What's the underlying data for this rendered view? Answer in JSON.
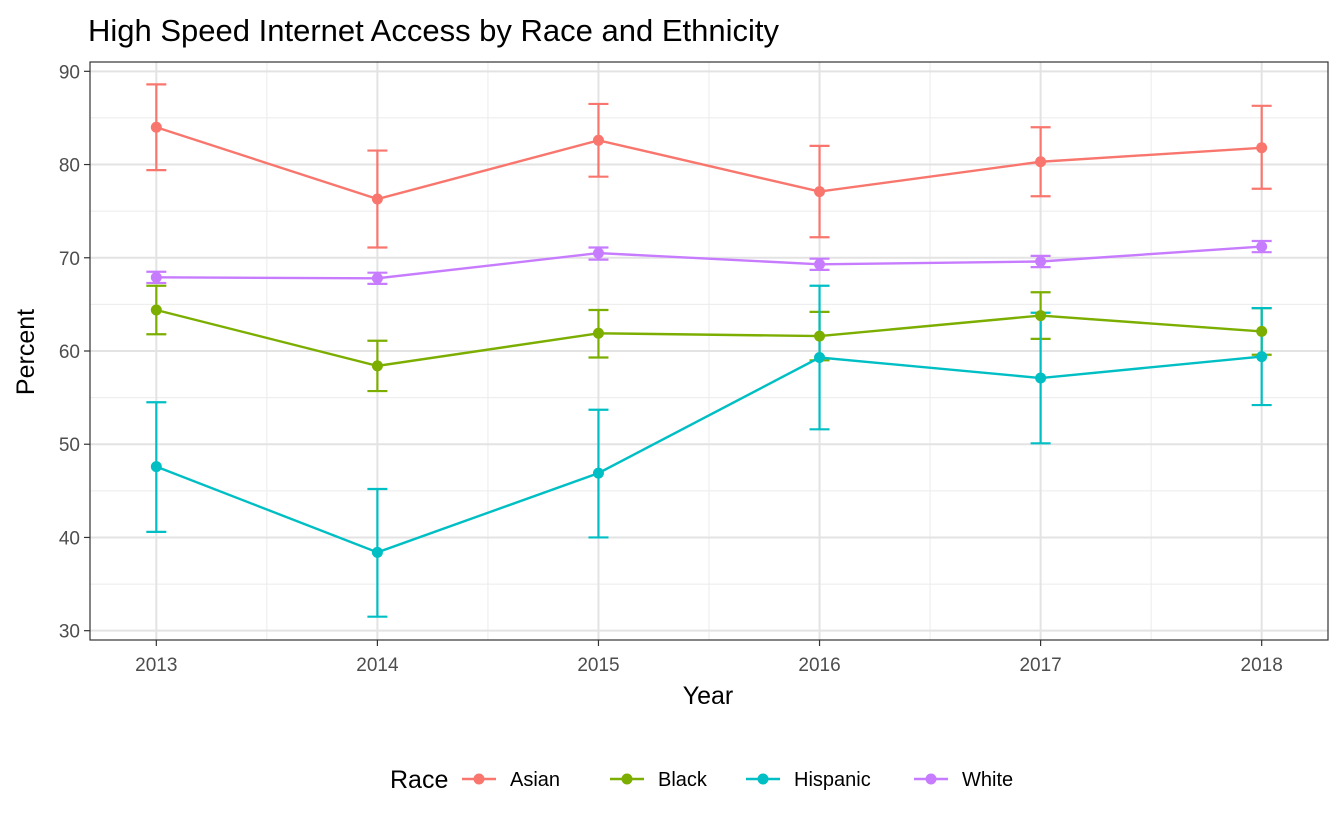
{
  "chart_data": {
    "type": "line",
    "title": "High Speed Internet Access by Race and Ethnicity",
    "xlabel": "Year",
    "ylabel": "Percent",
    "x": [
      2013,
      2014,
      2015,
      2016,
      2017,
      2018
    ],
    "xlim": [
      2012.7,
      2018.3
    ],
    "ylim": [
      29,
      91
    ],
    "yticks": [
      30,
      40,
      50,
      60,
      70,
      80,
      90
    ],
    "grid": true,
    "error_bars": true,
    "legend": {
      "title": "Race",
      "position": "bottom"
    },
    "series": [
      {
        "name": "Asian",
        "color": "#F8766D",
        "values": [
          84.0,
          76.3,
          82.6,
          77.1,
          80.3,
          81.8
        ],
        "lower": [
          79.4,
          71.1,
          78.7,
          72.2,
          76.6,
          77.4
        ],
        "upper": [
          88.6,
          81.5,
          86.5,
          82.0,
          84.0,
          86.3
        ]
      },
      {
        "name": "Black",
        "color": "#7CAE00",
        "values": [
          64.4,
          58.4,
          61.9,
          61.6,
          63.8,
          62.1
        ],
        "lower": [
          61.8,
          55.7,
          59.3,
          59.0,
          61.3,
          59.6
        ],
        "upper": [
          67.0,
          61.1,
          64.4,
          64.2,
          66.3,
          64.6
        ]
      },
      {
        "name": "Hispanic",
        "color": "#00BFC4",
        "values": [
          47.6,
          38.4,
          46.9,
          59.3,
          57.1,
          59.4
        ],
        "lower": [
          40.6,
          31.5,
          40.0,
          51.6,
          50.1,
          54.2
        ],
        "upper": [
          54.5,
          45.2,
          53.7,
          67.0,
          64.1,
          64.6
        ]
      },
      {
        "name": "White",
        "color": "#C77CFF",
        "values": [
          67.9,
          67.8,
          70.5,
          69.3,
          69.6,
          71.2
        ],
        "lower": [
          67.3,
          67.2,
          69.8,
          68.7,
          69.0,
          70.6
        ],
        "upper": [
          68.5,
          68.4,
          71.1,
          69.9,
          70.2,
          71.8
        ]
      }
    ]
  }
}
